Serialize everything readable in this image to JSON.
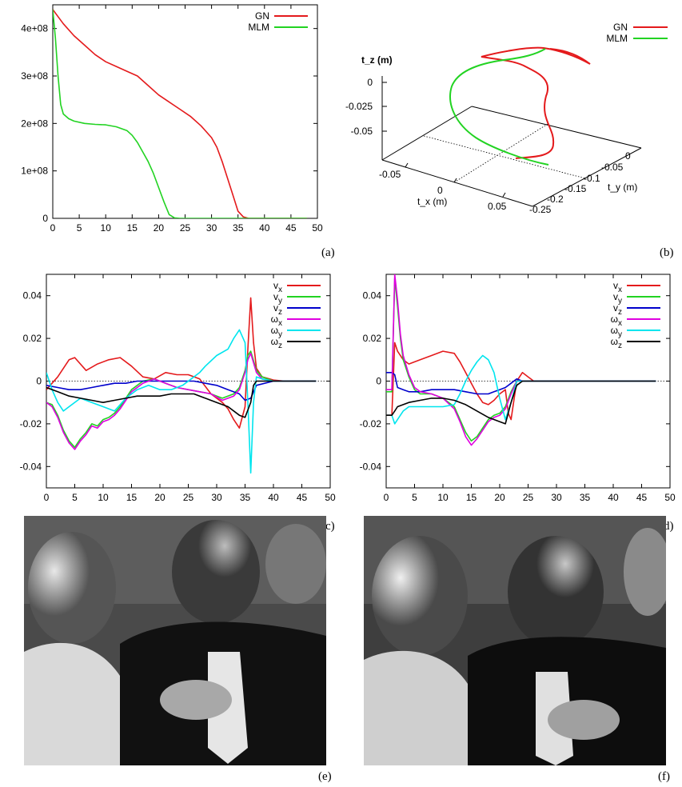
{
  "panel_labels": {
    "a": "(a)",
    "b": "(b)",
    "c": "(c)",
    "d": "(d)",
    "e": "(e)",
    "f": "(f)"
  },
  "colors": {
    "red": "#e41a1c",
    "green": "#22d322",
    "blue": "#0000cc",
    "magenta": "#e000e0",
    "cyan": "#00e5ee",
    "black": "#000000"
  },
  "chart_data": [
    {
      "id": "a",
      "type": "line",
      "title": "",
      "xlabel": "",
      "ylabel": "",
      "xlim": [
        0,
        50
      ],
      "ylim": [
        0,
        450000000
      ],
      "x_ticks": [
        0,
        5,
        10,
        15,
        20,
        25,
        30,
        35,
        40,
        45,
        50
      ],
      "x_tick_labels": [
        "0",
        "5",
        "10",
        "15",
        "20",
        "25",
        "30",
        "35",
        "40",
        "45",
        "50"
      ],
      "y_ticks": [
        0,
        100000000,
        200000000,
        300000000,
        400000000
      ],
      "y_tick_labels": [
        "0",
        "1e+08",
        "2e+08",
        "3e+08",
        "4e+08"
      ],
      "legend": "top-right",
      "series": [
        {
          "name": "GN",
          "color": "#e41a1c",
          "x": [
            0,
            1,
            2,
            4,
            6,
            8,
            10,
            12,
            14,
            16,
            18,
            20,
            22,
            24,
            26,
            28,
            30,
            31,
            32,
            33,
            34,
            35,
            36,
            37,
            38,
            40,
            48
          ],
          "y": [
            440000000,
            425000000,
            410000000,
            385000000,
            365000000,
            345000000,
            330000000,
            320000000,
            310000000,
            300000000,
            280000000,
            260000000,
            245000000,
            230000000,
            215000000,
            195000000,
            170000000,
            150000000,
            120000000,
            85000000,
            50000000,
            15000000,
            3000000,
            0,
            0,
            0,
            0
          ]
        },
        {
          "name": "MLM",
          "color": "#22d322",
          "x": [
            0,
            0.5,
            1,
            1.5,
            2,
            3,
            4,
            6,
            8,
            10,
            12,
            14,
            15,
            16,
            17,
            18,
            19,
            20,
            21,
            22,
            23,
            24,
            48
          ],
          "y": [
            440000000,
            380000000,
            300000000,
            240000000,
            220000000,
            210000000,
            205000000,
            200000000,
            198000000,
            197000000,
            193000000,
            185000000,
            175000000,
            160000000,
            140000000,
            120000000,
            95000000,
            65000000,
            35000000,
            8000000,
            1000000,
            0,
            0
          ]
        }
      ]
    },
    {
      "id": "b",
      "type": "line",
      "title": "",
      "x_axis_label": "t_x (m)",
      "y_axis_label": "t_y (m)",
      "z_axis_label": "t_z (m)",
      "tx_ticks": [
        "-0.05",
        "0",
        "0.05"
      ],
      "ty_ticks": [
        "0",
        "-0.05",
        "-0.1",
        "-0.15",
        "-0.2",
        "-0.25"
      ],
      "tz_ticks": [
        "0",
        "-0.025",
        "-0.05"
      ],
      "legend": "top-right",
      "series": [
        {
          "name": "GN",
          "color": "#e41a1c"
        },
        {
          "name": "MLM",
          "color": "#22d322"
        }
      ]
    },
    {
      "id": "c",
      "type": "line",
      "title": "",
      "xlim": [
        0,
        50
      ],
      "ylim": [
        -0.05,
        0.05
      ],
      "x_ticks": [
        0,
        5,
        10,
        15,
        20,
        25,
        30,
        35,
        40,
        45,
        50
      ],
      "x_tick_labels": [
        "0",
        "5",
        "10",
        "15",
        "20",
        "25",
        "30",
        "35",
        "40",
        "45",
        "50"
      ],
      "y_ticks": [
        -0.04,
        -0.02,
        0,
        0.02,
        0.04
      ],
      "y_tick_labels": [
        "-0.04",
        "-0.02",
        "0",
        "0.02",
        "0.04"
      ],
      "zero_line": true,
      "legend": "top-right",
      "series": [
        {
          "name": "v_x",
          "color": "#e41a1c",
          "x": [
            0,
            2,
            4,
            5,
            7,
            9,
            11,
            13,
            15,
            17,
            19,
            21,
            23,
            25,
            27,
            29,
            31,
            32,
            33,
            34,
            35,
            35.5,
            36,
            36.5,
            37,
            38,
            40,
            42,
            47.5
          ],
          "y": [
            -0.004,
            0.002,
            0.01,
            0.011,
            0.005,
            0.008,
            0.01,
            0.011,
            0.007,
            0.002,
            0.001,
            0.004,
            0.003,
            0.003,
            0.001,
            -0.006,
            -0.01,
            -0.013,
            -0.018,
            -0.022,
            -0.012,
            0.015,
            0.039,
            0.018,
            0.006,
            0.002,
            0.0005,
            0.0,
            0.0
          ]
        },
        {
          "name": "v_y",
          "color": "#22d322",
          "x": [
            0,
            1,
            2,
            3,
            4,
            5,
            6,
            7,
            8,
            9,
            10,
            11,
            12,
            13,
            14,
            15,
            17,
            19,
            21,
            23,
            25,
            27,
            29,
            31,
            33,
            34,
            35,
            35.5,
            36,
            37,
            38,
            40,
            47.5
          ],
          "y": [
            -0.01,
            -0.011,
            -0.016,
            -0.023,
            -0.028,
            -0.031,
            -0.027,
            -0.024,
            -0.02,
            -0.021,
            -0.018,
            -0.017,
            -0.015,
            -0.012,
            -0.008,
            -0.004,
            0.0,
            0.001,
            -0.001,
            -0.003,
            -0.004,
            -0.005,
            -0.006,
            -0.008,
            -0.006,
            -0.003,
            0.005,
            0.012,
            0.014,
            0.005,
            0.002,
            0.0,
            0.0
          ]
        },
        {
          "name": "v_z",
          "color": "#0000cc",
          "x": [
            0,
            2,
            4,
            6,
            8,
            10,
            12,
            14,
            16,
            18,
            20,
            22,
            24,
            26,
            28,
            30,
            32,
            34,
            35,
            36,
            37,
            40,
            47.5
          ],
          "y": [
            -0.002,
            -0.003,
            -0.004,
            -0.004,
            -0.003,
            -0.002,
            -0.001,
            -0.001,
            0.0,
            0.0,
            0.0,
            0.0,
            0.0,
            0.0,
            -0.001,
            -0.002,
            -0.004,
            -0.006,
            -0.009,
            -0.008,
            -0.002,
            0.0,
            0.0
          ]
        },
        {
          "name": "ω_x",
          "color": "#e000e0",
          "x": [
            0,
            1,
            2,
            3,
            4,
            5,
            6,
            7,
            8,
            9,
            10,
            11,
            12,
            13,
            14,
            15,
            17,
            19,
            21,
            23,
            25,
            27,
            29,
            31,
            33,
            34,
            35,
            35.5,
            36,
            37,
            38,
            40,
            47.5
          ],
          "y": [
            -0.01,
            -0.012,
            -0.017,
            -0.024,
            -0.029,
            -0.032,
            -0.028,
            -0.025,
            -0.021,
            -0.022,
            -0.019,
            -0.018,
            -0.016,
            -0.013,
            -0.009,
            -0.005,
            -0.001,
            0.001,
            -0.001,
            -0.003,
            -0.004,
            -0.005,
            -0.006,
            -0.009,
            -0.007,
            -0.004,
            0.004,
            0.01,
            0.013,
            0.004,
            0.001,
            0.0,
            0.0
          ]
        },
        {
          "name": "ω_y",
          "color": "#00e5ee",
          "x": [
            0,
            1,
            2,
            3,
            4,
            6,
            8,
            10,
            12,
            14,
            16,
            18,
            20,
            22,
            24,
            26,
            27,
            28,
            30,
            32,
            33,
            34,
            35,
            35.5,
            36,
            36.5,
            37,
            38,
            40,
            47.5
          ],
          "y": [
            0.004,
            -0.004,
            -0.01,
            -0.014,
            -0.012,
            -0.008,
            -0.01,
            -0.012,
            -0.014,
            -0.008,
            -0.004,
            -0.002,
            -0.004,
            -0.004,
            -0.002,
            0.002,
            0.004,
            0.007,
            0.012,
            0.015,
            0.02,
            0.024,
            0.018,
            -0.01,
            -0.043,
            -0.01,
            0.002,
            0.001,
            0.0,
            0.0
          ]
        },
        {
          "name": "ω_z",
          "color": "#000000",
          "x": [
            0,
            2,
            4,
            6,
            8,
            10,
            12,
            14,
            16,
            18,
            20,
            22,
            24,
            26,
            28,
            30,
            32,
            34,
            35,
            36,
            36.5,
            37,
            38,
            40,
            47.5
          ],
          "y": [
            -0.003,
            -0.005,
            -0.007,
            -0.008,
            -0.009,
            -0.01,
            -0.009,
            -0.008,
            -0.007,
            -0.007,
            -0.007,
            -0.006,
            -0.006,
            -0.006,
            -0.008,
            -0.01,
            -0.012,
            -0.016,
            -0.017,
            -0.01,
            -0.002,
            0.0,
            0.0,
            0.0,
            0.0
          ]
        }
      ]
    },
    {
      "id": "d",
      "type": "line",
      "title": "",
      "xlim": [
        0,
        50
      ],
      "ylim": [
        -0.05,
        0.05
      ],
      "x_ticks": [
        0,
        5,
        10,
        15,
        20,
        25,
        30,
        35,
        40,
        45,
        50
      ],
      "x_tick_labels": [
        "0",
        "5",
        "10",
        "15",
        "20",
        "25",
        "30",
        "35",
        "40",
        "45",
        "50"
      ],
      "y_ticks": [
        -0.04,
        -0.02,
        0,
        0.02,
        0.04
      ],
      "y_tick_labels": [
        "-0.04",
        "-0.02",
        "0",
        "0.02",
        "0.04"
      ],
      "zero_line": true,
      "legend": "top-right",
      "series": [
        {
          "name": "v_x",
          "color": "#e41a1c",
          "x": [
            0,
            1,
            1.5,
            2,
            3,
            4,
            6,
            8,
            10,
            12,
            13,
            14,
            15,
            16,
            17,
            18,
            19,
            20,
            21,
            21.5,
            22,
            23,
            24,
            25,
            26,
            28,
            47.5
          ],
          "y": [
            -0.016,
            -0.016,
            0.018,
            0.014,
            0.01,
            0.008,
            0.01,
            0.012,
            0.014,
            0.013,
            0.009,
            0.004,
            -0.001,
            -0.006,
            -0.01,
            -0.011,
            -0.009,
            -0.006,
            -0.004,
            -0.015,
            -0.018,
            0.0,
            0.004,
            0.002,
            0.0,
            0.0,
            0.0
          ]
        },
        {
          "name": "v_y",
          "color": "#22d322",
          "x": [
            0,
            1,
            1.5,
            2,
            2.5,
            3,
            4,
            5,
            6,
            8,
            10,
            12,
            13,
            14,
            15,
            16,
            17,
            18,
            19,
            20,
            21,
            22,
            23,
            24,
            26,
            47.5
          ],
          "y": [
            -0.005,
            -0.005,
            0.048,
            0.035,
            0.02,
            0.01,
            0.002,
            -0.004,
            -0.006,
            -0.006,
            -0.008,
            -0.012,
            -0.018,
            -0.024,
            -0.028,
            -0.026,
            -0.022,
            -0.018,
            -0.016,
            -0.015,
            -0.012,
            -0.005,
            0.0,
            0.0,
            0.0,
            0.0
          ]
        },
        {
          "name": "v_z",
          "color": "#0000cc",
          "x": [
            0,
            1,
            1.5,
            2,
            3,
            4,
            6,
            8,
            10,
            12,
            14,
            16,
            18,
            19,
            20,
            21,
            22,
            23,
            24,
            26,
            47.5
          ],
          "y": [
            0.004,
            0.004,
            0.003,
            -0.003,
            -0.004,
            -0.005,
            -0.005,
            -0.004,
            -0.004,
            -0.004,
            -0.005,
            -0.006,
            -0.006,
            -0.005,
            -0.004,
            -0.003,
            -0.001,
            0.001,
            0.0,
            0.0,
            0.0
          ]
        },
        {
          "name": "ω_x",
          "color": "#e000e0",
          "x": [
            0,
            1,
            1.5,
            2,
            2.5,
            3,
            4,
            5,
            6,
            8,
            10,
            12,
            13,
            14,
            15,
            16,
            17,
            18,
            19,
            20,
            21,
            22,
            23,
            24,
            26,
            47.5
          ],
          "y": [
            -0.004,
            -0.004,
            0.05,
            0.038,
            0.022,
            0.012,
            0.003,
            -0.003,
            -0.005,
            -0.006,
            -0.008,
            -0.013,
            -0.019,
            -0.026,
            -0.03,
            -0.027,
            -0.023,
            -0.019,
            -0.017,
            -0.016,
            -0.013,
            -0.006,
            0.0,
            0.0,
            0.0,
            0.0
          ]
        },
        {
          "name": "ω_y",
          "color": "#00e5ee",
          "x": [
            0,
            1,
            1.5,
            2,
            3,
            4,
            6,
            8,
            10,
            12,
            13,
            14,
            15,
            16,
            17,
            18,
            19,
            20,
            21,
            22,
            23,
            24,
            26,
            47.5
          ],
          "y": [
            -0.016,
            -0.016,
            -0.02,
            -0.018,
            -0.014,
            -0.012,
            -0.012,
            -0.012,
            -0.012,
            -0.011,
            -0.006,
            0.0,
            0.005,
            0.009,
            0.012,
            0.01,
            0.004,
            -0.008,
            -0.018,
            -0.01,
            0.0,
            0.0,
            0.0,
            0.0
          ]
        },
        {
          "name": "ω_z",
          "color": "#000000",
          "x": [
            0,
            1,
            1.5,
            2,
            3,
            4,
            6,
            8,
            10,
            12,
            14,
            16,
            18,
            20,
            21,
            22,
            23,
            24,
            26,
            47.5
          ],
          "y": [
            -0.016,
            -0.016,
            -0.014,
            -0.012,
            -0.011,
            -0.01,
            -0.009,
            -0.008,
            -0.008,
            -0.009,
            -0.011,
            -0.014,
            -0.017,
            -0.019,
            -0.02,
            -0.01,
            -0.002,
            0.0,
            0.0,
            0.0
          ]
        }
      ]
    }
  ]
}
